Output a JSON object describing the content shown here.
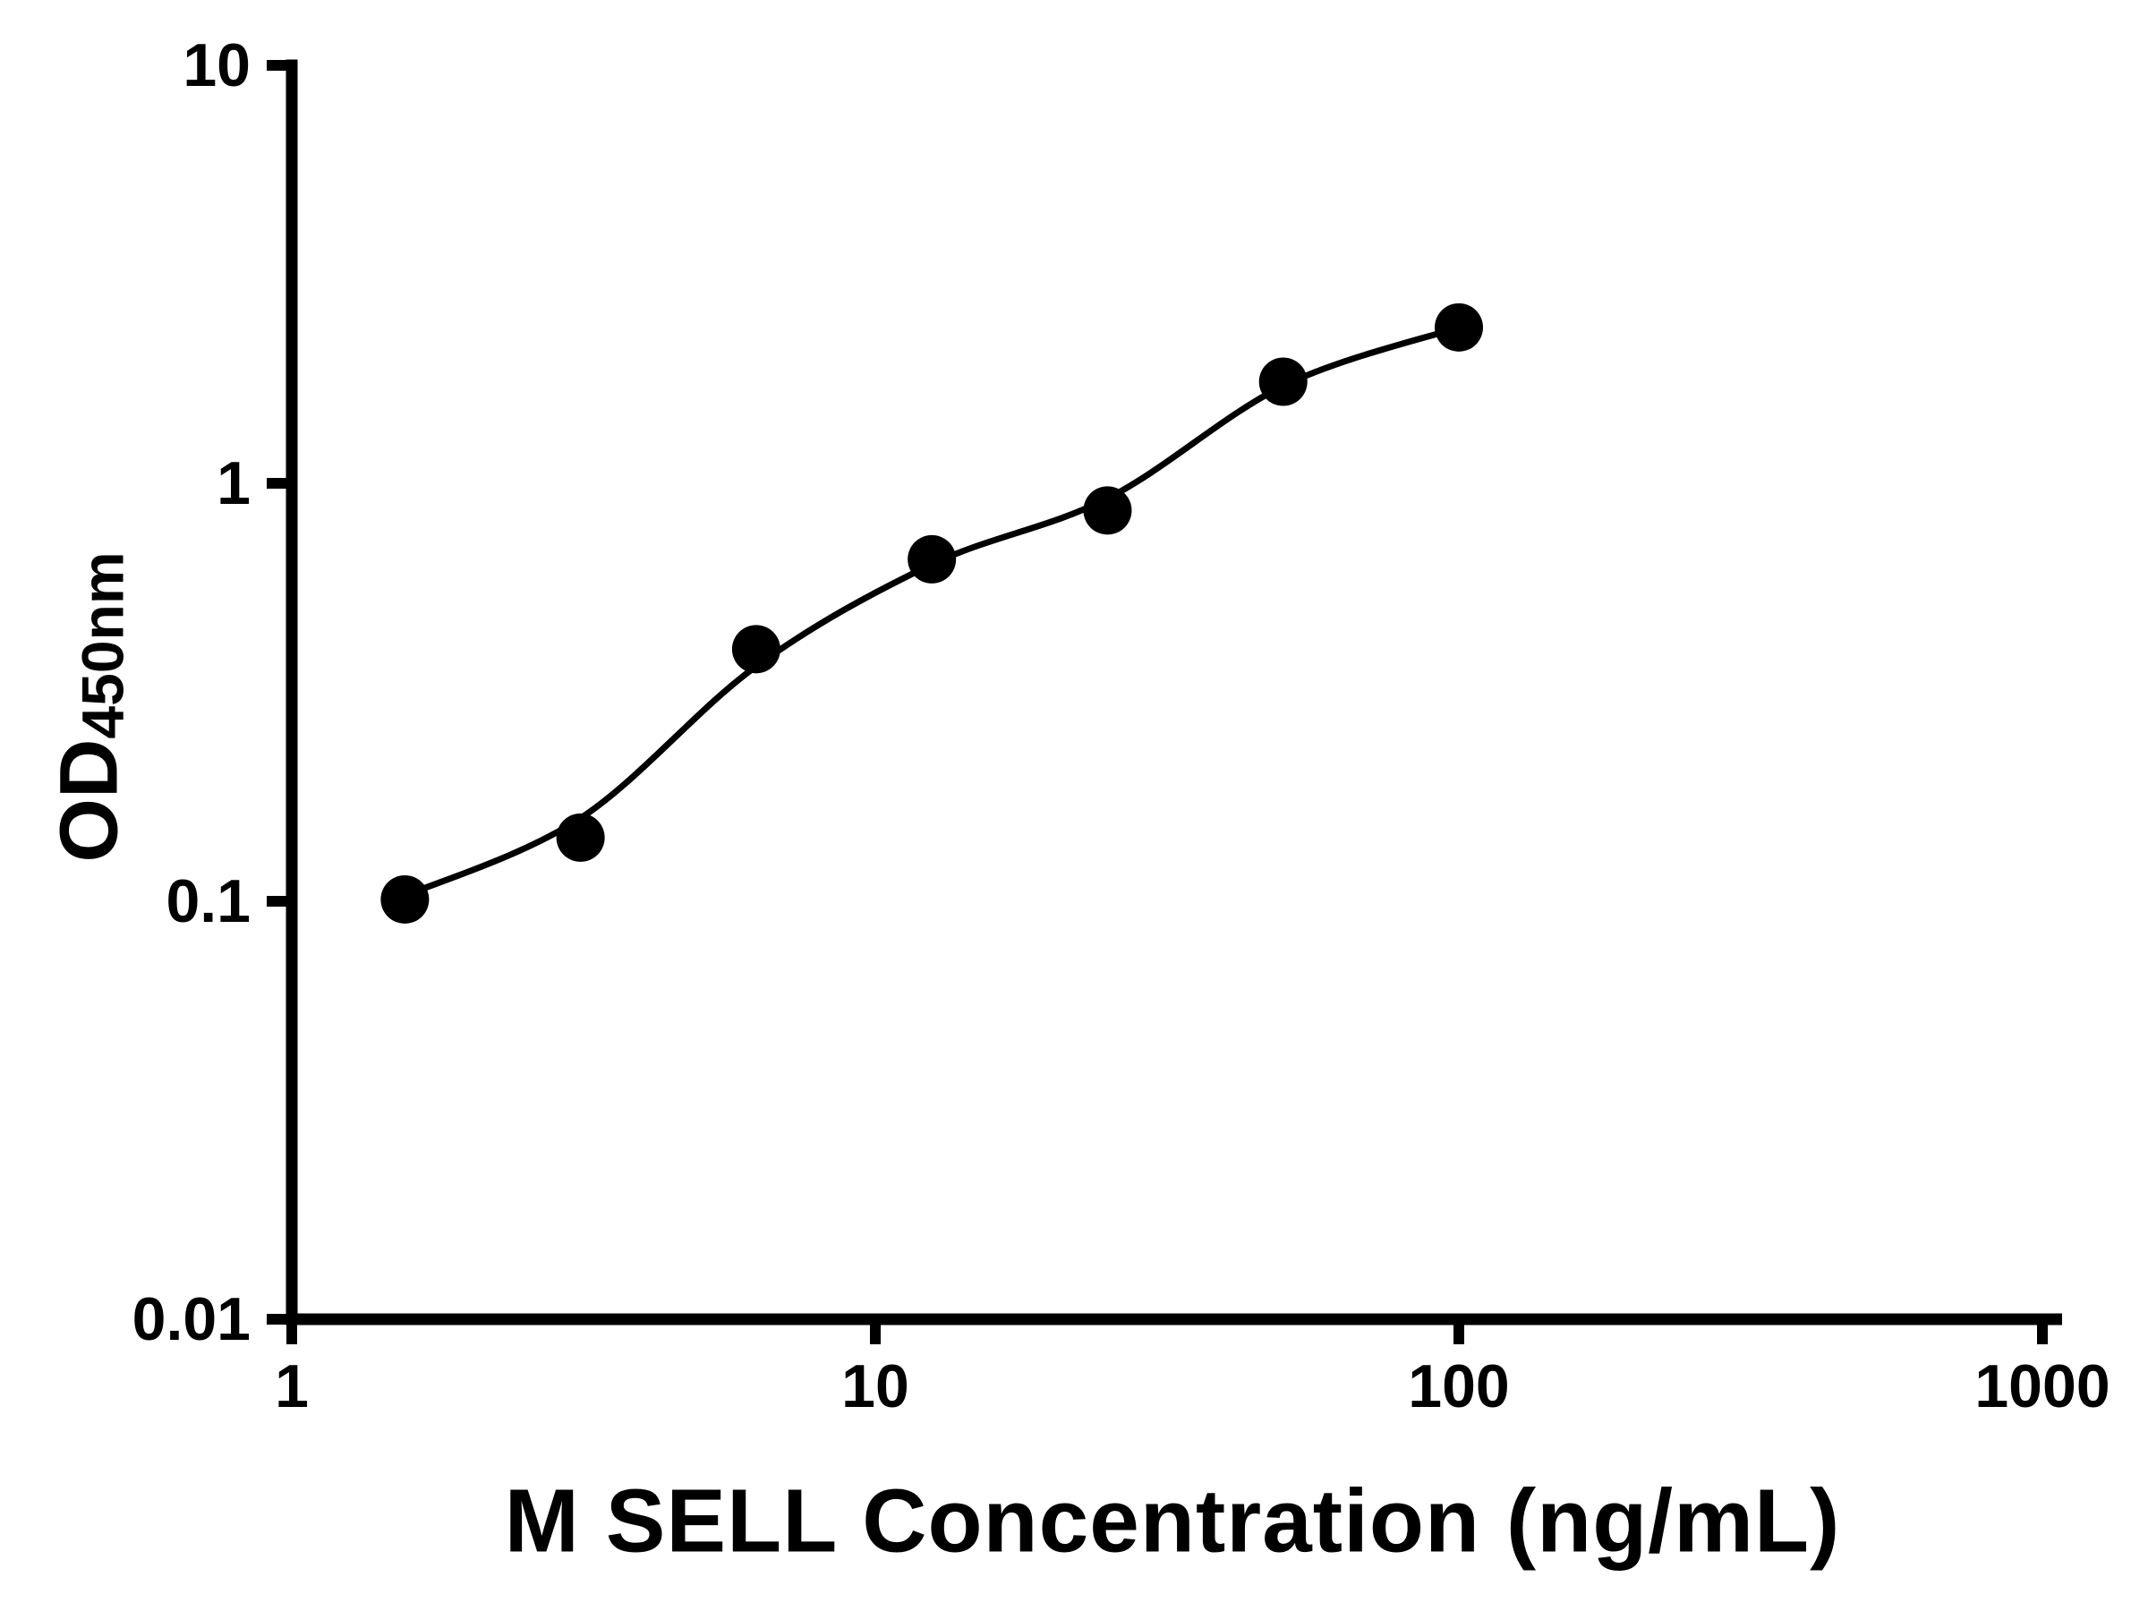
{
  "chart_data": {
    "type": "scatter",
    "title": "",
    "xlabel": "M SELL Concentration (ng/mL)",
    "ylabel_main": "OD",
    "ylabel_sub": "450nm",
    "xscale": "log",
    "yscale": "log",
    "xlim": [
      1,
      1000
    ],
    "ylim": [
      0.01,
      10
    ],
    "x_ticks": [
      1,
      10,
      100,
      1000
    ],
    "x_tick_labels": [
      "1",
      "10",
      "100",
      "1000"
    ],
    "y_ticks": [
      0.01,
      0.1,
      1,
      10
    ],
    "y_tick_labels": [
      "0.01",
      "0.1",
      "1",
      "10"
    ],
    "grid": false,
    "legend": false,
    "marker_color": "#000000",
    "line_color": "#000000",
    "axis_color": "#000000",
    "background": "#ffffff",
    "points": {
      "x": [
        1.5625,
        3.125,
        6.25,
        12.5,
        25,
        50,
        100
      ],
      "y": [
        0.101,
        0.142,
        0.401,
        0.658,
        0.861,
        1.75,
        2.36
      ]
    },
    "fit_line": {
      "x": [
        1.5625,
        3.125,
        6.25,
        12.5,
        25,
        50,
        100
      ],
      "y": [
        0.103,
        0.158,
        0.365,
        0.64,
        0.92,
        1.71,
        2.36
      ]
    }
  }
}
